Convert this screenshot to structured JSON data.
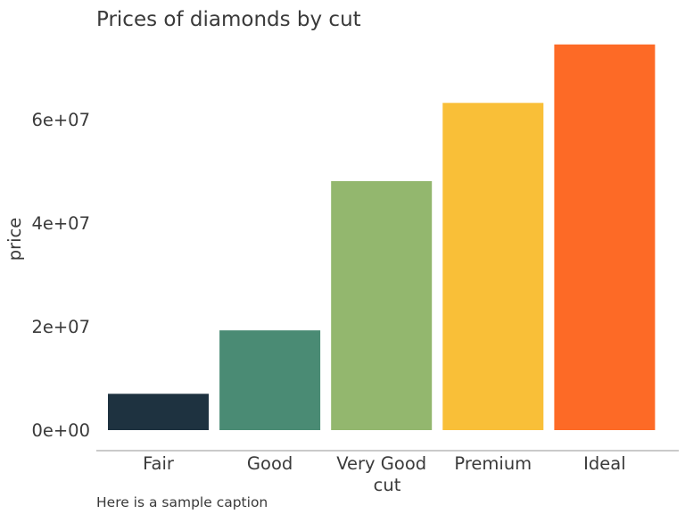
{
  "chart_data": {
    "type": "bar",
    "title": "Prices of diamonds by cut",
    "xlabel": "cut",
    "ylabel": "price",
    "caption": "Here is a sample caption",
    "categories": [
      "Fair",
      "Good",
      "Very Good",
      "Premium",
      "Ideal"
    ],
    "values": [
      7017600,
      19275009,
      48107623,
      63221498,
      74513487
    ],
    "colors": [
      "#1e3240",
      "#4a8b74",
      "#93b76e",
      "#f9bf38",
      "#fd6a26"
    ],
    "y_ticks": [
      0,
      20000000,
      40000000,
      60000000
    ],
    "y_tick_labels": [
      "0e+00",
      "2e+07",
      "4e+07",
      "6e+07"
    ],
    "ylim": [
      0,
      75000000
    ],
    "grid": false,
    "legend": "none"
  }
}
